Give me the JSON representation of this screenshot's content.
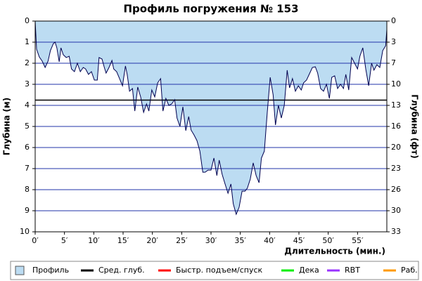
{
  "chart_data": {
    "type": "area",
    "title": "Профиль погружения № 153",
    "y_label": "Глубина (м)",
    "y2_label": "Глубина (фт)",
    "x_label": "Длительность (мин.)",
    "xlim": [
      0,
      60
    ],
    "xticks": [
      {
        "value": 0,
        "label": "0′"
      },
      {
        "value": 5,
        "label": "5′"
      },
      {
        "value": 10,
        "label": "10′"
      },
      {
        "value": 15,
        "label": "15′"
      },
      {
        "value": 20,
        "label": "20′"
      },
      {
        "value": 25,
        "label": "25′"
      },
      {
        "value": 30,
        "label": "30′"
      },
      {
        "value": 35,
        "label": "35′"
      },
      {
        "value": 40,
        "label": "40′"
      },
      {
        "value": 45,
        "label": "45′"
      },
      {
        "value": 50,
        "label": "50′"
      },
      {
        "value": 55,
        "label": "55′"
      }
    ],
    "ylim": [
      0,
      10
    ],
    "yticks": [
      0,
      1,
      2,
      3,
      4,
      5,
      6,
      7,
      8,
      9,
      10
    ],
    "y2lim": [
      0,
      32.808
    ],
    "y2ticks": [
      {
        "value": 0,
        "label": "0"
      },
      {
        "value": 3.281,
        "label": "3"
      },
      {
        "value": 6.562,
        "label": "7"
      },
      {
        "value": 9.842,
        "label": "10"
      },
      {
        "value": 13.123,
        "label": "13"
      },
      {
        "value": 16.404,
        "label": "16"
      },
      {
        "value": 19.685,
        "label": "20"
      },
      {
        "value": 22.966,
        "label": "23"
      },
      {
        "value": 26.247,
        "label": "26"
      },
      {
        "value": 29.528,
        "label": "30"
      },
      {
        "value": 32.808,
        "label": "33"
      }
    ],
    "grid": true,
    "avg_depth": 3.75,
    "x": [
      0,
      0.24,
      0.7,
      1.2,
      1.7,
      2.2,
      2.6,
      3.1,
      3.4,
      3.7,
      4.1,
      4.4,
      4.8,
      5.3,
      5.8,
      6.2,
      6.7,
      7.2,
      7.7,
      8.2,
      8.6,
      9.1,
      9.6,
      10.1,
      10.6,
      10.9,
      11.4,
      11.8,
      12.1,
      12.6,
      13.1,
      13.4,
      13.9,
      14.4,
      14.9,
      15.4,
      15.7,
      16.1,
      16.6,
      17.0,
      17.5,
      18.0,
      18.5,
      19.0,
      19.4,
      19.9,
      20.4,
      20.9,
      21.4,
      21.8,
      22.3,
      22.8,
      23.3,
      23.8,
      24.2,
      24.7,
      25.2,
      25.7,
      26.2,
      26.6,
      27.1,
      27.6,
      28.1,
      28.6,
      29.0,
      29.5,
      30.0,
      30.5,
      31.0,
      31.4,
      31.9,
      32.4,
      32.9,
      33.4,
      33.8,
      34.3,
      34.8,
      35.3,
      35.8,
      36.2,
      36.7,
      37.2,
      37.7,
      38.2,
      38.6,
      39.1,
      39.6,
      40.1,
      40.6,
      41.0,
      41.5,
      42.0,
      42.5,
      43.0,
      43.4,
      43.9,
      44.4,
      44.9,
      45.4,
      45.8,
      46.3,
      46.8,
      47.3,
      47.8,
      48.2,
      48.7,
      49.2,
      49.7,
      50.2,
      50.6,
      51.1,
      51.6,
      52.1,
      52.6,
      53.0,
      53.5,
      54.0,
      54.5,
      55.0,
      55.4,
      55.9,
      56.4,
      56.9,
      57.4,
      57.8,
      58.3,
      58.8,
      59.3,
      59.8,
      60.0
    ],
    "series": [
      {
        "name": "Профиль",
        "color": "#bcdcf2",
        "values": [
          0,
          1.33,
          1.7,
          1.9,
          2.2,
          1.9,
          1.4,
          1.07,
          1.0,
          1.27,
          1.93,
          1.27,
          1.6,
          1.73,
          1.67,
          2.27,
          2.4,
          2.0,
          2.4,
          2.2,
          2.27,
          2.53,
          2.4,
          2.8,
          2.8,
          1.73,
          1.8,
          2.2,
          2.47,
          2.2,
          1.87,
          2.27,
          2.4,
          2.73,
          3.07,
          2.13,
          2.53,
          3.33,
          3.2,
          4.27,
          3.13,
          3.6,
          4.33,
          3.93,
          4.27,
          3.27,
          3.6,
          2.93,
          2.73,
          4.27,
          3.67,
          4.0,
          3.93,
          3.73,
          4.6,
          5.0,
          4.07,
          5.2,
          4.53,
          5.17,
          5.4,
          5.67,
          6.17,
          7.17,
          7.17,
          7.07,
          7.07,
          6.5,
          7.33,
          6.6,
          7.27,
          7.73,
          8.17,
          7.73,
          8.67,
          9.17,
          8.83,
          8.07,
          8.07,
          7.93,
          7.5,
          6.73,
          7.33,
          7.67,
          6.5,
          6.17,
          4.33,
          2.67,
          3.5,
          4.93,
          4.0,
          4.6,
          4.0,
          2.33,
          3.17,
          2.73,
          3.33,
          3.07,
          3.27,
          2.93,
          2.8,
          2.5,
          2.2,
          2.17,
          2.47,
          3.2,
          3.33,
          3.0,
          3.67,
          2.67,
          2.6,
          3.2,
          3.0,
          3.2,
          2.53,
          3.27,
          1.73,
          2.0,
          2.27,
          1.67,
          1.27,
          2.27,
          3.07,
          2.0,
          2.33,
          2.07,
          2.2,
          1.4,
          1.17,
          0.4
        ]
      }
    ],
    "legend": [
      {
        "name": "Профиль",
        "color": "#bcdcf2"
      },
      {
        "name": "Сред. глуб.",
        "color": "#000000"
      },
      {
        "name": "Быстр. подъем/спуск",
        "color": "#ff0000"
      },
      {
        "name": "Дека",
        "color": "#00ee00"
      },
      {
        "name": "RBT",
        "color": "#9933ff"
      },
      {
        "name": "Раб.",
        "color": "#ff9900"
      }
    ]
  }
}
